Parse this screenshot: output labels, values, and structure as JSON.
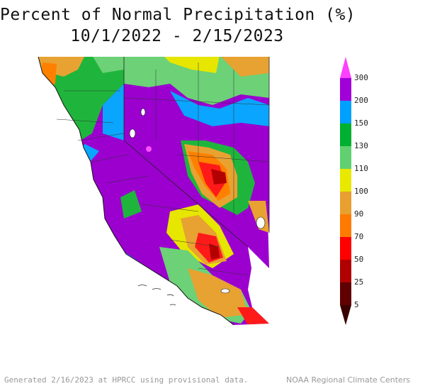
{
  "title": {
    "line1": "Percent of Normal Precipitation (%)",
    "line2": "10/1/2022 - 2/15/2023"
  },
  "legend": {
    "labels": [
      "300",
      "200",
      "150",
      "130",
      "110",
      "100",
      "90",
      "70",
      "50",
      "25",
      "5"
    ],
    "colors": [
      "#a000d8",
      "#00a0ff",
      "#00b030",
      "#60d070",
      "#e8e800",
      "#e8a030",
      "#ff7a00",
      "#ff0000",
      "#b00000",
      "#600000"
    ],
    "top_color": "#ff40ff"
  },
  "footer": {
    "left": "Generated 2/16/2023 at HPRCC using provisional data.",
    "right": "NOAA Regional Climate Centers"
  },
  "colors": {
    "over_200": "#9b00cf",
    "range_150_200": "#0aa5ff",
    "range_130_150": "#1fb53c",
    "range_110_130": "#6cd177",
    "range_100_110": "#e6e600",
    "range_90_100": "#e8a232",
    "range_70_90": "#ff8000",
    "range_50_70": "#ff1a1a",
    "range_25_50": "#b30000",
    "over_300": "#ff50ff"
  }
}
